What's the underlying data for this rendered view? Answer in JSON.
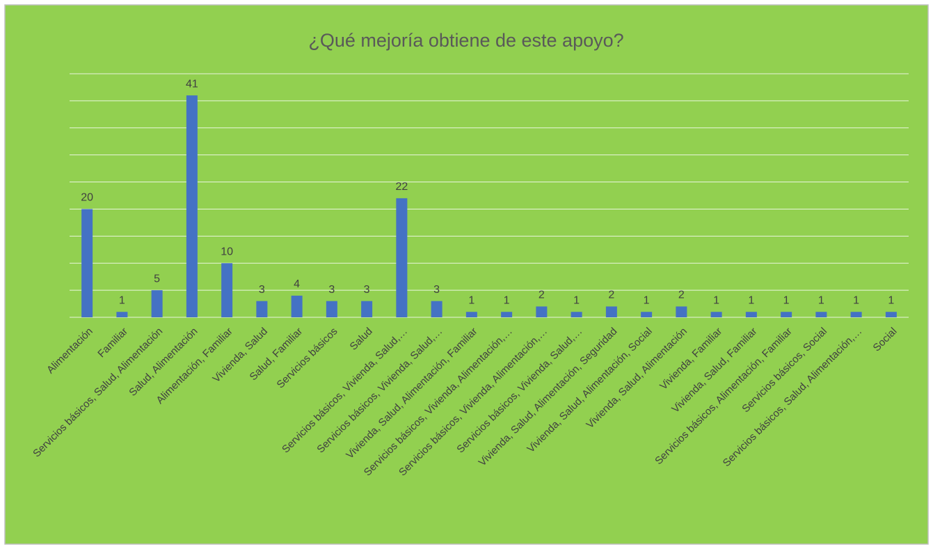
{
  "chart_data": {
    "type": "bar",
    "title": "¿Qué mejoría obtiene de este apoyo?",
    "categories": [
      "Alimentación",
      "Familiar",
      "Servicios básicos, Salud, Alimentación",
      "Salud, Alimentación",
      "Alimentación, Familiar",
      "Vivienda, Salud",
      "Salud, Familiar",
      "Servicios básicos",
      "Salud",
      "Servicios básicos, Vivienda, Salud,…",
      "Servicios básicos, Vivienda, Salud,…",
      "Vivienda, Salud, Alimentación, Familiar",
      "Servicios básicos, Vivienda, Alimentación,…",
      "Servicios básicos, Vivienda, Alimentación,…",
      "Servicios básicos, Vivienda, Salud,…",
      "Vivienda, Salud, Alimentación, Seguridad",
      "Vivienda, Salud, Alimentación, Social",
      "Vivienda, Salud, Alimentación",
      "Vivienda, Familiar",
      "Vivienda, Salud, Familiar",
      "Servicios básicos, Alimentación, Familiar",
      "Servicios básicos, Social",
      "Servicios básicos, Salud, Alimentación,…",
      "Social"
    ],
    "values": [
      20,
      1,
      5,
      41,
      10,
      3,
      4,
      3,
      3,
      22,
      3,
      1,
      1,
      2,
      1,
      2,
      1,
      2,
      1,
      1,
      1,
      1,
      1,
      1
    ],
    "color": "#4472c4",
    "ylim": [
      0,
      45
    ],
    "yticks": [
      0,
      5,
      10,
      15,
      20,
      25,
      30,
      35,
      40,
      45
    ],
    "grid": true
  }
}
